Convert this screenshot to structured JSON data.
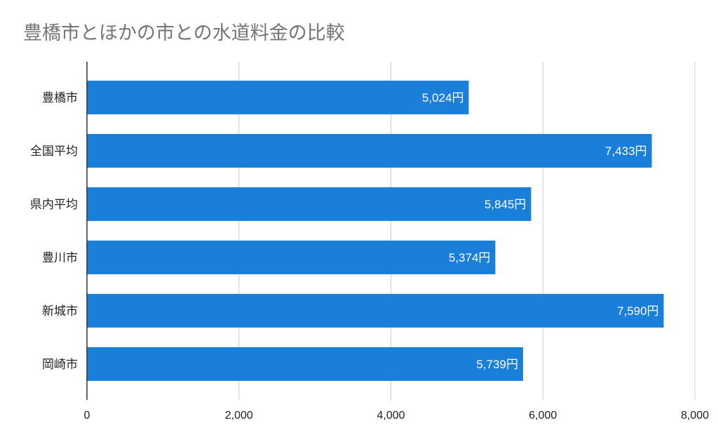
{
  "chart_data": {
    "type": "bar",
    "orientation": "horizontal",
    "title": "豊橋市とほかの市との水道料金の比較",
    "xlabel": "",
    "ylabel": "",
    "categories": [
      "豊橋市",
      "全国平均",
      "県内平均",
      "豊川市",
      "新城市",
      "岡崎市"
    ],
    "values": [
      5024,
      7433,
      5845,
      5374,
      7590,
      5739
    ],
    "data_labels": [
      "5,024円",
      "7,433円",
      "5,845円",
      "5,374円",
      "7,590円",
      "5,739円"
    ],
    "xlim": [
      0,
      8000
    ],
    "x_ticks": [
      0,
      2000,
      4000,
      6000,
      8000
    ],
    "x_tick_labels": [
      "0",
      "2,000",
      "4,000",
      "6,000",
      "8,000"
    ],
    "grid": true,
    "legend": "none",
    "colors": {
      "bar": "#1a7fd8",
      "grid": "#cccccc",
      "axis": "#333333",
      "title": "#757575"
    }
  }
}
